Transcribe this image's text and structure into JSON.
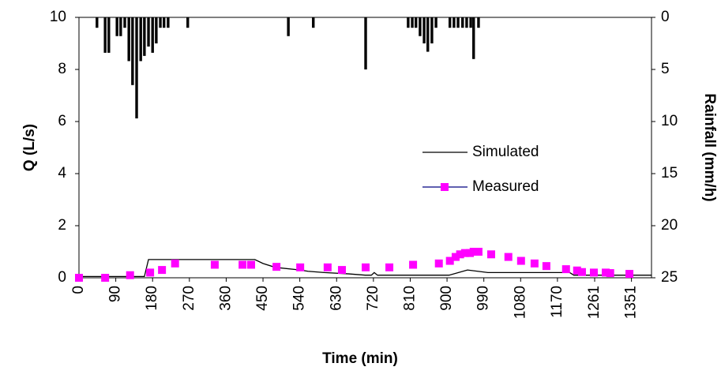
{
  "chart_data": {
    "type": "line",
    "x_label": "Time (min)",
    "y_label": "Q (L/s)",
    "y2_label": "Rainfall (mm/h)",
    "xlim": [
      0,
      1400
    ],
    "ylim": [
      0,
      10
    ],
    "y2lim": [
      25,
      0
    ],
    "xticks": [
      0,
      90,
      180,
      270,
      360,
      450,
      540,
      630,
      720,
      810,
      900,
      990,
      1080,
      1170,
      1261,
      1351
    ],
    "yticks": [
      0,
      2,
      4,
      6,
      8,
      10
    ],
    "y2ticks": [
      0,
      5,
      10,
      15,
      20,
      25
    ],
    "series": [
      {
        "name": "Simulated",
        "type": "line",
        "color": "#000000",
        "x": [
          0,
          160,
          170,
          430,
          450,
          480,
          540,
          560,
          600,
          660,
          700,
          715,
          722,
          730,
          890,
          905,
          950,
          1000,
          1200,
          1210,
          1400
        ],
        "values": [
          0.05,
          0.05,
          0.7,
          0.7,
          0.55,
          0.4,
          0.3,
          0.25,
          0.2,
          0.15,
          0.1,
          0.1,
          0.2,
          0.1,
          0.1,
          0.1,
          0.3,
          0.2,
          0.2,
          0.1,
          0.1
        ]
      },
      {
        "name": "Measured",
        "type": "scatter",
        "color": "#ff00ff",
        "line_color": "#000080",
        "x": [
          0,
          64,
          125,
          174,
          203,
          235,
          332,
          400,
          421,
          483,
          541,
          608,
          643,
          701,
          759,
          817,
          880,
          907,
          921,
          932,
          944,
          956,
          965,
          977,
          1008,
          1050,
          1081,
          1114,
          1143,
          1191,
          1218,
          1230,
          1259,
          1288,
          1299,
          1346
        ],
        "values": [
          0,
          0,
          0.1,
          0.2,
          0.3,
          0.55,
          0.5,
          0.5,
          0.5,
          0.42,
          0.4,
          0.4,
          0.3,
          0.4,
          0.4,
          0.5,
          0.55,
          0.65,
          0.8,
          0.9,
          0.95,
          0.95,
          1.0,
          1.0,
          0.9,
          0.8,
          0.65,
          0.55,
          0.45,
          0.33,
          0.28,
          0.22,
          0.2,
          0.2,
          0.18,
          0.15
        ]
      },
      {
        "type": "bar",
        "axis": "y2",
        "color": "#000000",
        "x": [
          44,
          64,
          73,
          93,
          102,
          112,
          122,
          131,
          141,
          151,
          160,
          170,
          180,
          189,
          199,
          208,
          218,
          266,
          512,
          573,
          701,
          805,
          815,
          824,
          834,
          844,
          853,
          863,
          873,
          907,
          917,
          927,
          938,
          948,
          958,
          965,
          977
        ],
        "values": [
          1,
          3.4,
          3.4,
          1.8,
          1.8,
          1,
          4.2,
          6.5,
          9.7,
          4.2,
          3.7,
          2.8,
          3.4,
          2.5,
          1,
          1,
          1,
          1,
          1.8,
          1,
          5,
          1,
          1,
          1,
          1.8,
          2.5,
          3.3,
          2.5,
          1,
          1,
          1,
          1,
          1,
          1,
          1,
          4,
          1
        ]
      }
    ]
  }
}
